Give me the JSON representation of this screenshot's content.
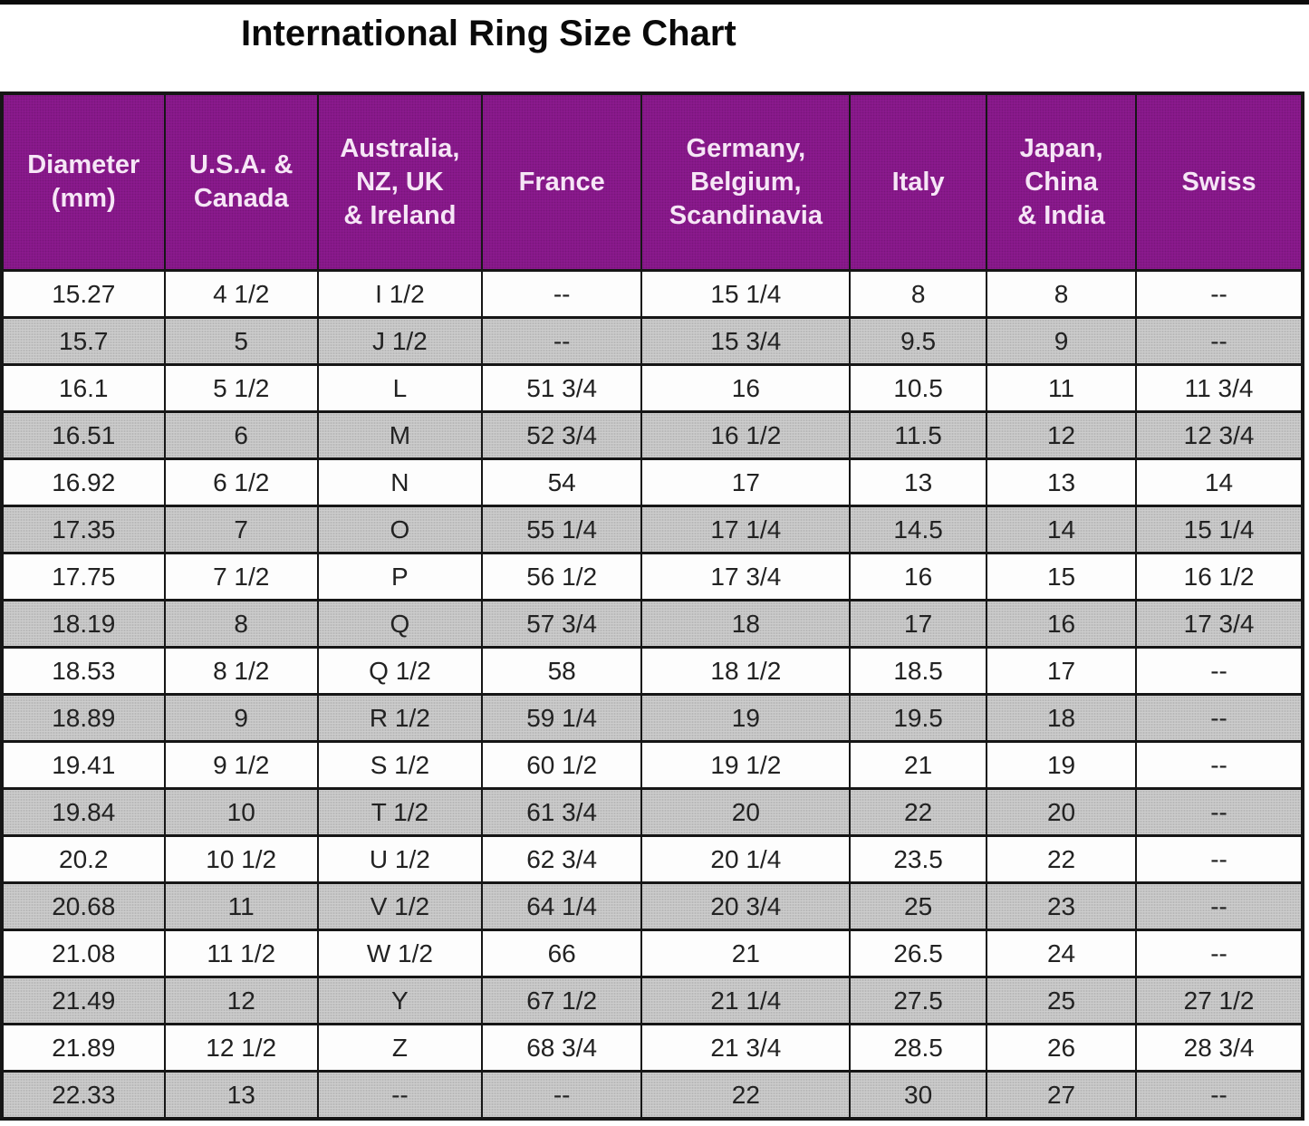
{
  "page": {
    "title": "International Ring Size Chart"
  },
  "colors": {
    "header_bg": "#8E1B91",
    "header_text": "#F6E6F6",
    "row_bg": "#FDFDFD",
    "row_alt_bg": "#CDCDCD",
    "border": "#161616",
    "title_text": "#0A0A0A",
    "cell_text": "#222222"
  },
  "chart_data": {
    "type": "table",
    "title": "International Ring Size Chart",
    "columns": [
      "Diameter\n(mm)",
      "U.S.A. &\nCanada",
      "Australia,\nNZ, UK\n& Ireland",
      "France",
      "Germany,\nBelgium,\nScandinavia",
      "Italy",
      "Japan,\nChina\n& India",
      "Swiss"
    ],
    "rows": [
      [
        "15.27",
        "4 1/2",
        "I 1/2",
        "--",
        "15 1/4",
        "8",
        "8",
        "--"
      ],
      [
        "15.7",
        "5",
        "J 1/2",
        "--",
        "15 3/4",
        "9.5",
        "9",
        "--"
      ],
      [
        "16.1",
        "5 1/2",
        "L",
        "51 3/4",
        "16",
        "10.5",
        "11",
        "11 3/4"
      ],
      [
        "16.51",
        "6",
        "M",
        "52 3/4",
        "16 1/2",
        "11.5",
        "12",
        "12 3/4"
      ],
      [
        "16.92",
        "6 1/2",
        "N",
        "54",
        "17",
        "13",
        "13",
        "14"
      ],
      [
        "17.35",
        "7",
        "O",
        "55 1/4",
        "17 1/4",
        "14.5",
        "14",
        "15 1/4"
      ],
      [
        "17.75",
        "7 1/2",
        "P",
        "56 1/2",
        "17 3/4",
        "16",
        "15",
        "16 1/2"
      ],
      [
        "18.19",
        "8",
        "Q",
        "57 3/4",
        "18",
        "17",
        "16",
        "17 3/4"
      ],
      [
        "18.53",
        "8 1/2",
        "Q 1/2",
        "58",
        "18 1/2",
        "18.5",
        "17",
        "--"
      ],
      [
        "18.89",
        "9",
        "R 1/2",
        "59 1/4",
        "19",
        "19.5",
        "18",
        "--"
      ],
      [
        "19.41",
        "9 1/2",
        "S 1/2",
        "60 1/2",
        "19 1/2",
        "21",
        "19",
        "--"
      ],
      [
        "19.84",
        "10",
        "T 1/2",
        "61 3/4",
        "20",
        "22",
        "20",
        "--"
      ],
      [
        "20.2",
        "10 1/2",
        "U 1/2",
        "62 3/4",
        "20 1/4",
        "23.5",
        "22",
        "--"
      ],
      [
        "20.68",
        "11",
        "V 1/2",
        "64 1/4",
        "20 3/4",
        "25",
        "23",
        "--"
      ],
      [
        "21.08",
        "11 1/2",
        "W 1/2",
        "66",
        "21",
        "26.5",
        "24",
        "--"
      ],
      [
        "21.49",
        "12",
        "Y",
        "67 1/2",
        "21 1/4",
        "27.5",
        "25",
        "27 1/2"
      ],
      [
        "21.89",
        "12 1/2",
        "Z",
        "68 3/4",
        "21 3/4",
        "28.5",
        "26",
        "28 3/4"
      ],
      [
        "22.33",
        "13",
        "--",
        "--",
        "22",
        "30",
        "27",
        "--"
      ]
    ],
    "layout": {
      "striped": true,
      "stripe_pattern": "white and gray alternating, first data row white",
      "header_style": "purple background, white bold text",
      "grid": true
    }
  }
}
